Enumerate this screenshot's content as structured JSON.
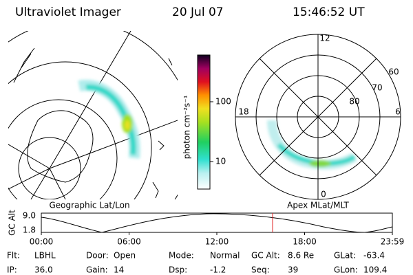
{
  "header": {
    "instrument": "Ultraviolet Imager",
    "date": "20 Jul 07",
    "time": "15:46:52 UT"
  },
  "left_panel": {
    "label": "Geographic Lat/Lon"
  },
  "right_panel": {
    "label": "Apex MLat/MLT",
    "mlt_labels": [
      "12",
      "18",
      "6",
      "0"
    ],
    "lat_labels": [
      "60",
      "70",
      "80"
    ]
  },
  "colorbar": {
    "label": "photon cm⁻²s⁻¹",
    "ticks": [
      "100",
      "10"
    ]
  },
  "orbit_plot": {
    "ylabel": "GC Alt",
    "yticks": [
      "9.0",
      "1.8"
    ],
    "xticks": [
      "00:00",
      "06:00",
      "12:00",
      "18:00",
      "23:59"
    ]
  },
  "footer": {
    "rows": [
      [
        {
          "label": "Flt:",
          "value": "LBHL"
        },
        {
          "label": "Door:",
          "value": "Open"
        },
        {
          "label": "Mode:",
          "value": "Normal"
        },
        {
          "label": "GC Alt:",
          "value": "8.6 Re"
        },
        {
          "label": "GLat:",
          "value": "-63.4"
        }
      ],
      [
        {
          "label": "IP:",
          "value": "36.0"
        },
        {
          "label": "Gain:",
          "value": "14"
        },
        {
          "label": "Dsp:",
          "value": "-1.2"
        },
        {
          "label": "Seq:",
          "value": "39"
        },
        {
          "label": "GLon:",
          "value": "109.4"
        }
      ]
    ]
  }
}
